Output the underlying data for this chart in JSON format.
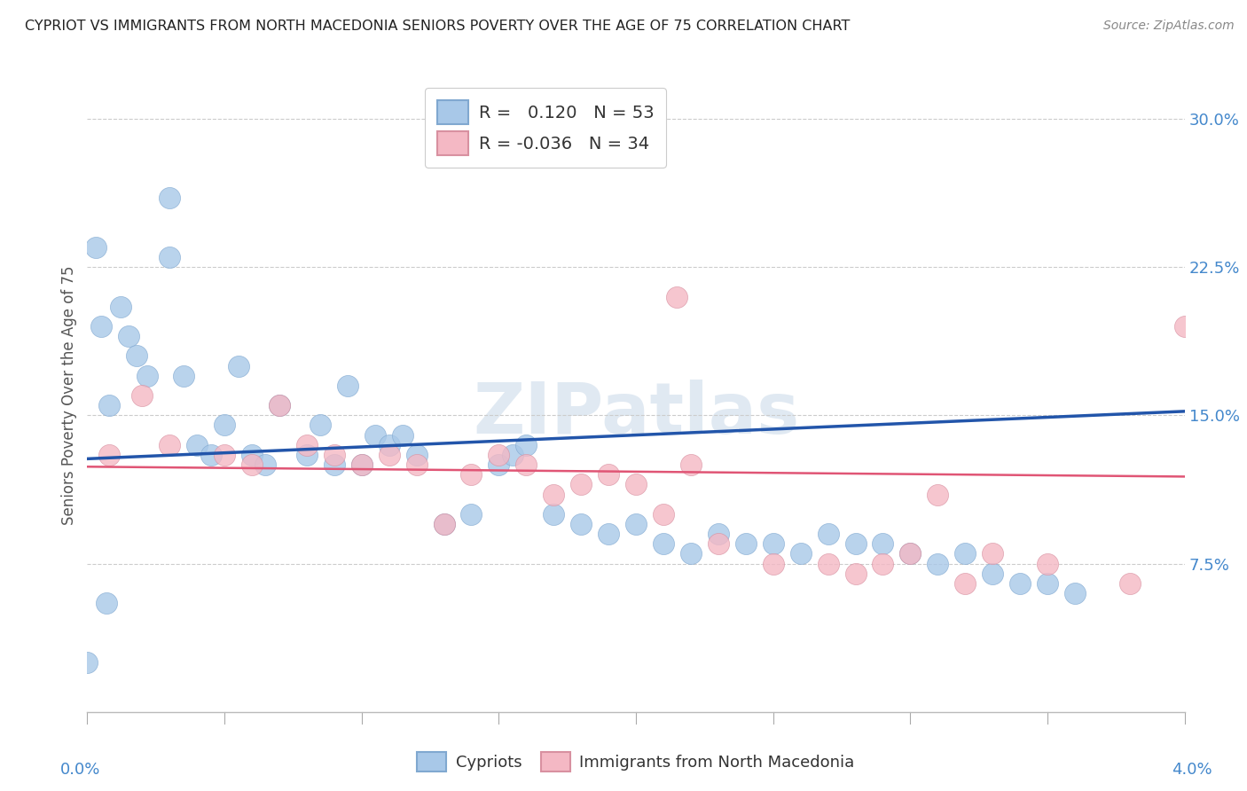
{
  "title": "CYPRIOT VS IMMIGRANTS FROM NORTH MACEDONIA SENIORS POVERTY OVER THE AGE OF 75 CORRELATION CHART",
  "source": "Source: ZipAtlas.com",
  "ylabel": "Seniors Poverty Over the Age of 75",
  "yticks_labels": [
    "7.5%",
    "15.0%",
    "22.5%",
    "30.0%"
  ],
  "ytick_vals": [
    0.075,
    0.15,
    0.225,
    0.3
  ],
  "xlim": [
    0.0,
    0.04
  ],
  "ylim": [
    0.0,
    0.32
  ],
  "blue_R": 0.12,
  "blue_N": 53,
  "pink_R": -0.036,
  "pink_N": 34,
  "blue_label": "Cypriots",
  "pink_label": "Immigrants from North Macedonia",
  "background_color": "#ffffff",
  "grid_color": "#cccccc",
  "blue_color": "#a8c8e8",
  "blue_edge_color": "#80a8d0",
  "blue_line_color": "#2255aa",
  "pink_color": "#f4b8c4",
  "pink_edge_color": "#d890a0",
  "pink_line_color": "#e05575",
  "blue_line_y0": 0.128,
  "blue_line_y1": 0.152,
  "pink_line_y0": 0.124,
  "pink_line_y1": 0.119,
  "blue_scatter_x": [
    0.0008,
    0.0005,
    0.0003,
    0.0012,
    0.0015,
    0.0018,
    0.0022,
    0.003,
    0.003,
    0.0035,
    0.004,
    0.0045,
    0.005,
    0.0055,
    0.006,
    0.0065,
    0.007,
    0.008,
    0.0085,
    0.009,
    0.0095,
    0.01,
    0.0105,
    0.011,
    0.0115,
    0.012,
    0.013,
    0.014,
    0.015,
    0.0155,
    0.016,
    0.017,
    0.018,
    0.019,
    0.02,
    0.021,
    0.022,
    0.023,
    0.024,
    0.025,
    0.026,
    0.027,
    0.028,
    0.029,
    0.03,
    0.031,
    0.032,
    0.033,
    0.034,
    0.035,
    0.036,
    0.0,
    0.0007
  ],
  "blue_scatter_y": [
    0.155,
    0.195,
    0.235,
    0.205,
    0.19,
    0.18,
    0.17,
    0.26,
    0.23,
    0.17,
    0.135,
    0.13,
    0.145,
    0.175,
    0.13,
    0.125,
    0.155,
    0.13,
    0.145,
    0.125,
    0.165,
    0.125,
    0.14,
    0.135,
    0.14,
    0.13,
    0.095,
    0.1,
    0.125,
    0.13,
    0.135,
    0.1,
    0.095,
    0.09,
    0.095,
    0.085,
    0.08,
    0.09,
    0.085,
    0.085,
    0.08,
    0.09,
    0.085,
    0.085,
    0.08,
    0.075,
    0.08,
    0.07,
    0.065,
    0.065,
    0.06,
    0.025,
    0.055
  ],
  "pink_scatter_x": [
    0.0008,
    0.002,
    0.003,
    0.005,
    0.006,
    0.007,
    0.008,
    0.009,
    0.01,
    0.011,
    0.012,
    0.013,
    0.014,
    0.015,
    0.016,
    0.017,
    0.018,
    0.019,
    0.02,
    0.021,
    0.0215,
    0.022,
    0.023,
    0.025,
    0.027,
    0.028,
    0.029,
    0.03,
    0.031,
    0.032,
    0.033,
    0.035,
    0.038,
    0.04
  ],
  "pink_scatter_y": [
    0.13,
    0.16,
    0.135,
    0.13,
    0.125,
    0.155,
    0.135,
    0.13,
    0.125,
    0.13,
    0.125,
    0.095,
    0.12,
    0.13,
    0.125,
    0.11,
    0.115,
    0.12,
    0.115,
    0.1,
    0.21,
    0.125,
    0.085,
    0.075,
    0.075,
    0.07,
    0.075,
    0.08,
    0.11,
    0.065,
    0.08,
    0.075,
    0.065,
    0.195
  ]
}
